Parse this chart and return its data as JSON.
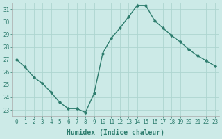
{
  "x": [
    0,
    1,
    2,
    3,
    4,
    5,
    6,
    7,
    8,
    9,
    10,
    11,
    12,
    13,
    14,
    15,
    16,
    17,
    18,
    19,
    20,
    21,
    22,
    23
  ],
  "y": [
    27.0,
    26.4,
    25.6,
    25.1,
    24.4,
    23.6,
    23.1,
    23.1,
    22.8,
    24.3,
    27.5,
    28.7,
    29.5,
    30.4,
    31.3,
    31.3,
    30.1,
    29.5,
    28.9,
    28.4,
    27.8,
    27.3,
    26.9,
    26.5
  ],
  "line_color": "#2e7d6e",
  "marker": "D",
  "marker_size": 1.8,
  "bg_color": "#cceae7",
  "grid_color": "#add5d0",
  "xlabel": "Humidex (Indice chaleur)",
  "xlim": [
    -0.5,
    23.5
  ],
  "ylim": [
    22.5,
    31.5
  ],
  "yticks": [
    23,
    24,
    25,
    26,
    27,
    28,
    29,
    30,
    31
  ],
  "xticks": [
    0,
    1,
    2,
    3,
    4,
    5,
    6,
    7,
    8,
    9,
    10,
    11,
    12,
    13,
    14,
    15,
    16,
    17,
    18,
    19,
    20,
    21,
    22,
    23
  ],
  "tick_fontsize": 5.5,
  "xlabel_fontsize": 7.0,
  "line_width": 1.0
}
